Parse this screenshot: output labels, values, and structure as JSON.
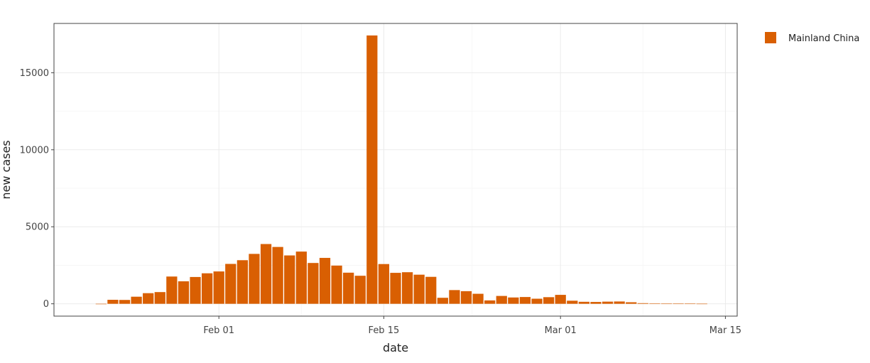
{
  "chart_data": {
    "type": "bar",
    "title": "",
    "xlabel": "date",
    "ylabel": "new cases",
    "x_start_date": "2020-01-22",
    "x_range": [
      "2020-01-18",
      "2020-03-16"
    ],
    "xticks": [
      {
        "date": "2020-02-01",
        "label": "Feb 01"
      },
      {
        "date": "2020-02-15",
        "label": "Feb 15"
      },
      {
        "date": "2020-03-01",
        "label": "Mar 01"
      },
      {
        "date": "2020-03-15",
        "label": "Mar 15"
      }
    ],
    "yticks": [
      0,
      5000,
      10000,
      15000
    ],
    "ylim": [
      -800,
      18200
    ],
    "grid": true,
    "legend_position": "right",
    "series": [
      {
        "name": "Mainland China",
        "color": "#D95F02",
        "values": [
          0,
          260,
          250,
          460,
          690,
          760,
          1770,
          1460,
          1740,
          1980,
          2100,
          2590,
          2830,
          3240,
          3880,
          3690,
          3140,
          3390,
          2650,
          2980,
          2480,
          2020,
          1820,
          17420,
          2580,
          2010,
          2050,
          1890,
          1750,
          390,
          890,
          820,
          650,
          220,
          510,
          410,
          440,
          330,
          430,
          580,
          200,
          130,
          120,
          140,
          150,
          100,
          40,
          20,
          10,
          10,
          10,
          5
        ]
      }
    ]
  }
}
